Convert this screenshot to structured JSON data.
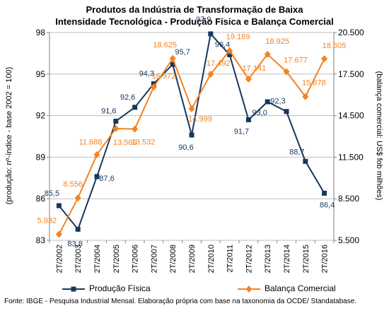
{
  "chart_data": {
    "type": "line",
    "title_lines": [
      "Produtos da Indústria de Transformação de Baixa",
      "Intensidade Tecnológica - Produção Física e Balança Comercial"
    ],
    "categories": [
      "2T/2002",
      "2T/2003",
      "2T/2004",
      "2T/2005",
      "2T/2006",
      "2T/2007",
      "2T/2008",
      "2T/2009",
      "2T/2010",
      "2T/2011",
      "2T/2012",
      "2T/2013",
      "2T/2014",
      "2T/2015",
      "2T/2016"
    ],
    "y_left": {
      "label": "(produção: nº-índice - base 2002 = 100)",
      "range": [
        83,
        98
      ],
      "ticks": [
        "83",
        "86",
        "89",
        "92",
        "95",
        "98"
      ],
      "tick_values": [
        83,
        86,
        89,
        92,
        95,
        98
      ]
    },
    "y_right": {
      "label": "(balança comercial: US$ fob milhões)",
      "range": [
        5500,
        20500
      ],
      "ticks": [
        "5.500",
        "8.500",
        "11.500",
        "14.500",
        "17.500",
        "20.500"
      ],
      "tick_values": [
        5500,
        8500,
        11500,
        14500,
        17500,
        20500
      ]
    },
    "series": [
      {
        "name": "Produção Física",
        "axis": "left",
        "color": "#17375e",
        "marker": "square",
        "values": [
          85.5,
          83.8,
          87.6,
          91.6,
          92.6,
          94.3,
          95.7,
          90.6,
          97.9,
          96.4,
          91.7,
          93.0,
          92.3,
          88.7,
          86.4
        ],
        "labels": [
          "85,5",
          "83,8",
          "87,6",
          "91,6",
          "92,6",
          "94,3",
          "95,7",
          "90,6",
          "97,9",
          "96,4",
          "91,7",
          "93,0",
          "92,3",
          "88,7",
          "86,4"
        ],
        "label_color": "#17375e"
      },
      {
        "name": "Balança Comercial",
        "axis": "right",
        "color": "#f58220",
        "marker": "diamond",
        "values": [
          5932,
          8556,
          11688,
          13569,
          13532,
          16572,
          18625,
          14999,
          17492,
          19189,
          17141,
          18925,
          17677,
          15878,
          18605
        ],
        "labels": [
          "5.932",
          "8.556",
          "11.688",
          "13.569",
          "13.532",
          "16.572",
          "18.625",
          "14.999",
          "17.492",
          "19.189",
          "17.141",
          "18.925",
          "17.677",
          "15.878",
          "18.605"
        ],
        "label_color": "#f58220"
      }
    ],
    "grid": true,
    "legend_position": "bottom"
  },
  "source_text": "Fonte: IBGE - Pesquisa Industrial Mensal. Elaboração própria com base na taxonomia da OCDE/ Standatabase."
}
